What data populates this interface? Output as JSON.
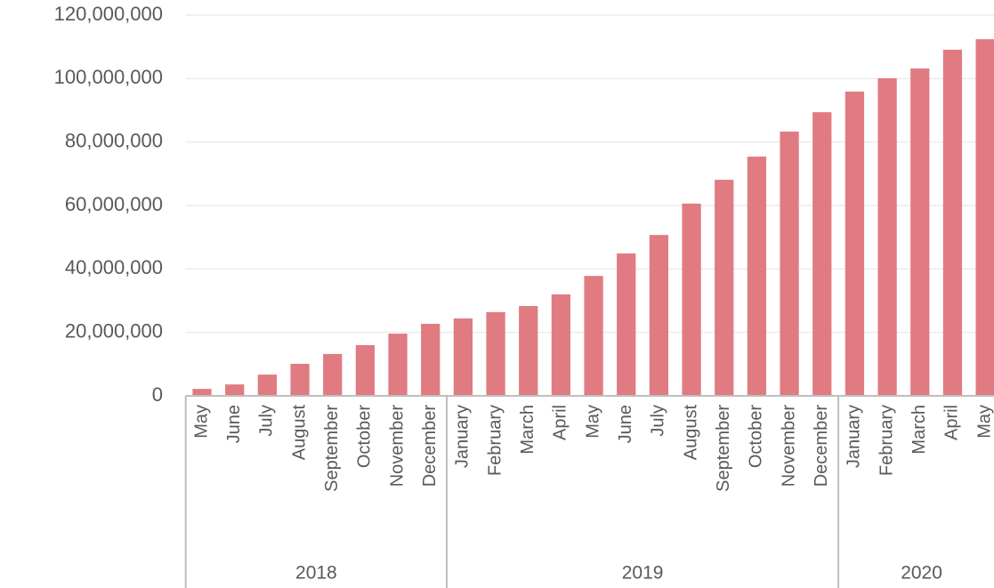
{
  "chart_data": {
    "type": "bar",
    "color": "#e07b82",
    "grid": true,
    "ylim": [
      0,
      120000000
    ],
    "yticks": [
      {
        "value": 0,
        "label": "0"
      },
      {
        "value": 20000000,
        "label": "20,000,000"
      },
      {
        "value": 40000000,
        "label": "40,000,000"
      },
      {
        "value": 60000000,
        "label": "60,000,000"
      },
      {
        "value": 80000000,
        "label": "80,000,000"
      },
      {
        "value": 100000000,
        "label": "100,000,000"
      },
      {
        "value": 120000000,
        "label": "120,000,000"
      }
    ],
    "groups": [
      {
        "label": "2018",
        "categories": [
          "May",
          "June",
          "July",
          "August",
          "September",
          "October",
          "November",
          "December"
        ],
        "values": [
          2200000,
          3600000,
          6700000,
          10100000,
          13200000,
          16000000,
          19600000,
          22700000
        ]
      },
      {
        "label": "2019",
        "categories": [
          "January",
          "February",
          "March",
          "April",
          "May",
          "June",
          "July",
          "August",
          "September",
          "October",
          "November",
          "December"
        ],
        "values": [
          24400000,
          26400000,
          28300000,
          32000000,
          37800000,
          44900000,
          50700000,
          60600000,
          68100000,
          75400000,
          83300000,
          89400000
        ]
      },
      {
        "label": "2020",
        "categories": [
          "January",
          "February",
          "March",
          "April",
          "May"
        ],
        "values": [
          95900000,
          100100000,
          103200000,
          109100000,
          112400000
        ]
      }
    ]
  }
}
